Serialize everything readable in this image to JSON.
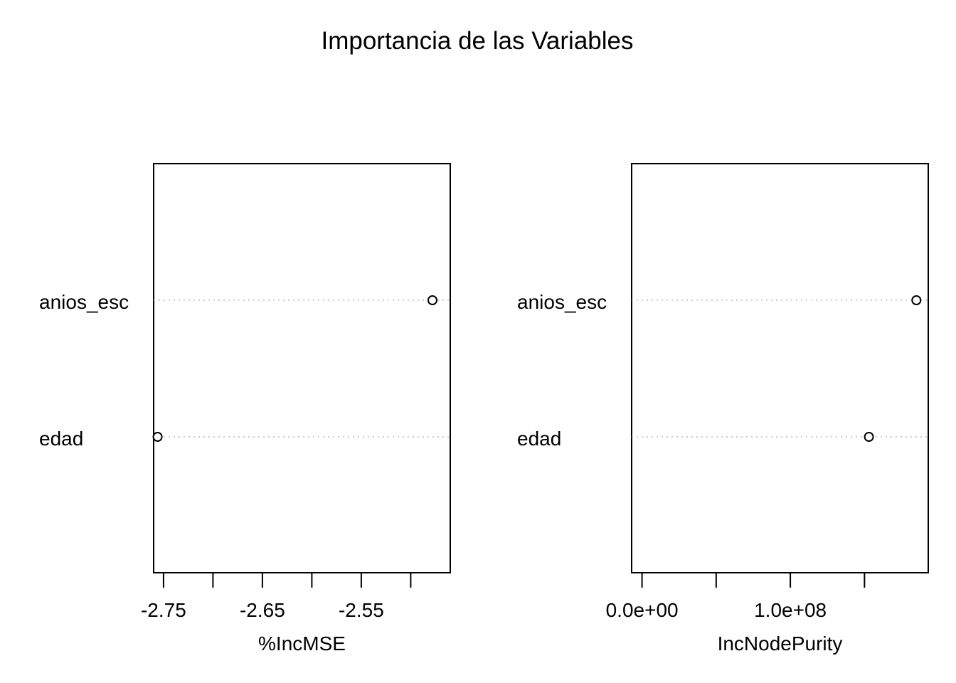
{
  "chart_data": {
    "title": "Importancia de las Variables",
    "panels": [
      {
        "type": "scatter",
        "subtype": "dotchart",
        "xlabel": "%IncMSE",
        "categories": [
          "anios_esc",
          "edad"
        ],
        "values": [
          2.478,
          2.756
        ],
        "sign": -1,
        "xlim": [
          -2.76,
          -2.46
        ],
        "xticks": [
          -2.75,
          -2.7,
          -2.65,
          -2.6,
          -2.55,
          -2.5
        ],
        "xtick_labels": [
          "-2.75",
          "",
          "-2.65",
          "",
          "-2.55",
          ""
        ],
        "grid": "dotted horizontal guides"
      },
      {
        "type": "scatter",
        "subtype": "dotchart",
        "xlabel": "IncNodePurity",
        "categories": [
          "anios_esc",
          "edad"
        ],
        "values": [
          185000000,
          153000000
        ],
        "sign": 1,
        "xlim": [
          -7000000,
          193000000
        ],
        "xticks": [
          0,
          50000000,
          100000000,
          150000000
        ],
        "xtick_labels": [
          "0.0e+00",
          "",
          "1.0e+08",
          ""
        ],
        "grid": "dotted horizontal guides"
      }
    ]
  },
  "colors": {
    "foreground": "#000000",
    "guide": "#bebebe",
    "background": "#ffffff"
  }
}
